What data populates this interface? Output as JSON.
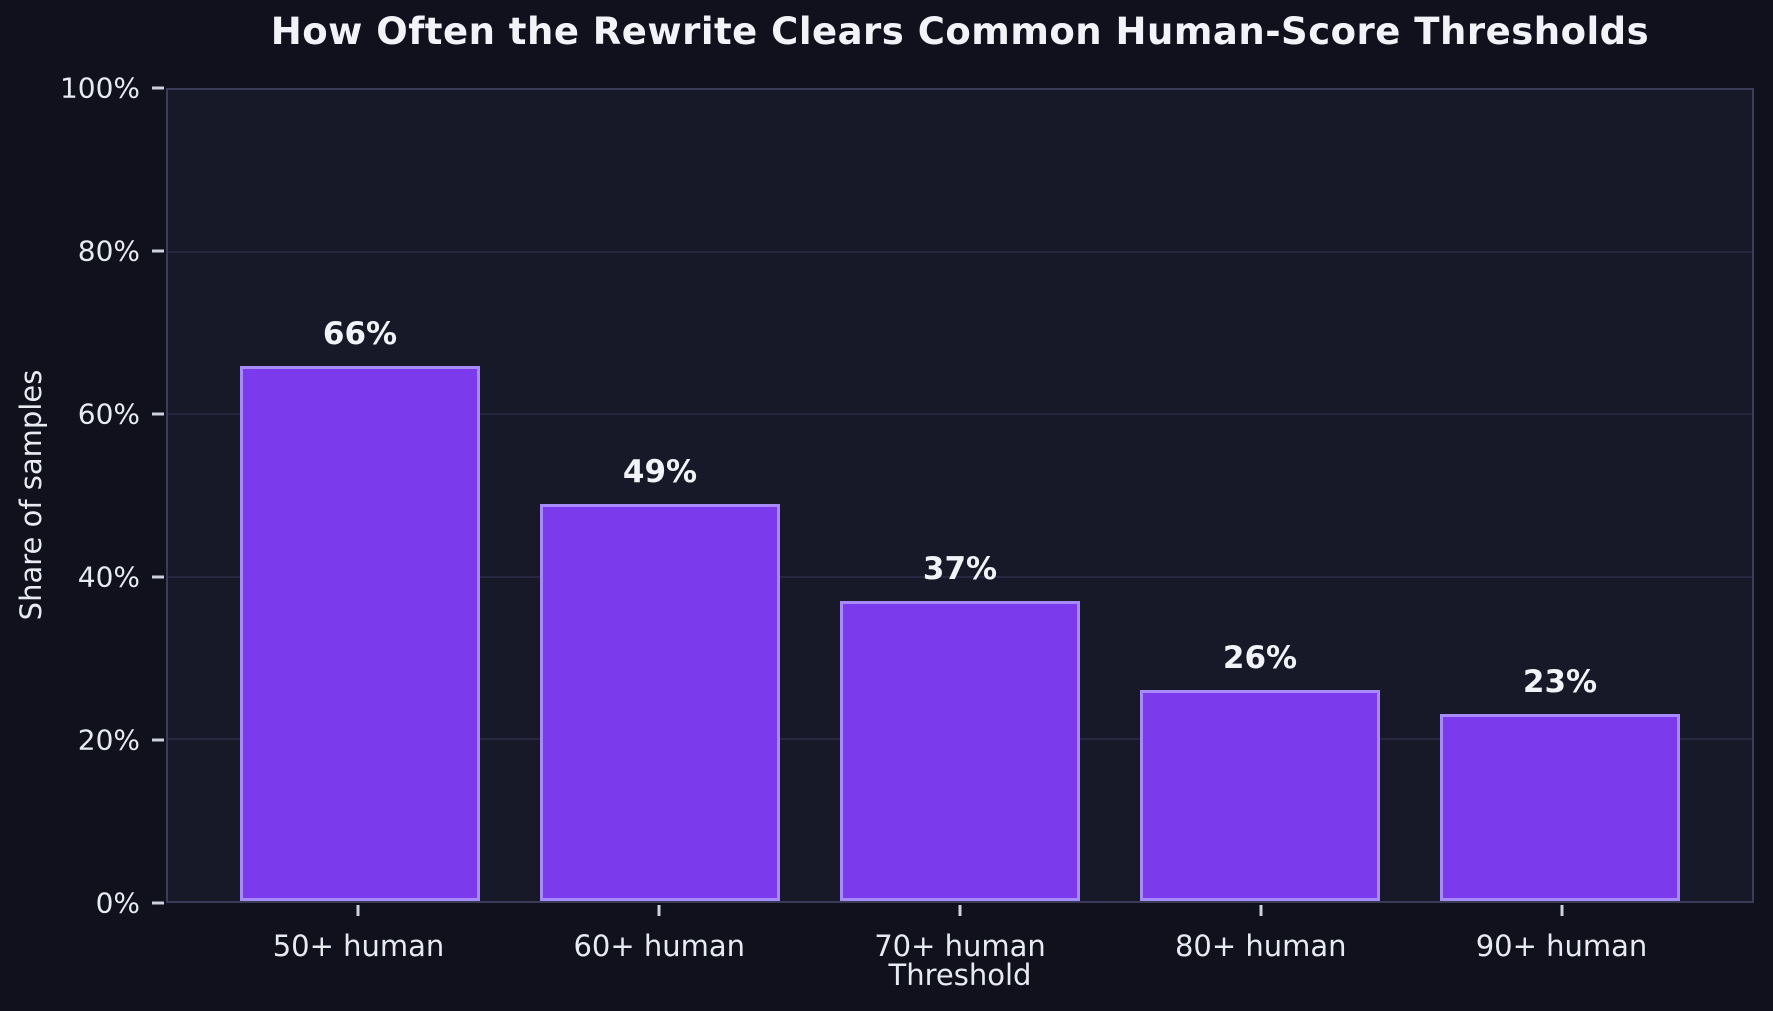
{
  "chart_data": {
    "type": "bar",
    "title": "How Often the Rewrite Clears Common Human-Score Thresholds",
    "xlabel": "Threshold",
    "ylabel": "Share of samples",
    "categories": [
      "50+ human",
      "60+ human",
      "70+ human",
      "80+ human",
      "90+ human"
    ],
    "values": [
      66,
      49,
      37,
      26,
      23
    ],
    "value_labels": [
      "66%",
      "49%",
      "37%",
      "26%",
      "23%"
    ],
    "ylim": [
      0,
      100
    ],
    "yticks": [
      0,
      20,
      40,
      60,
      80,
      100
    ],
    "ytick_labels": [
      "0%",
      "20%",
      "40%",
      "60%",
      "80%",
      "100%"
    ],
    "grid": "horizontal",
    "legend": "none",
    "colors": {
      "background": "#10111d",
      "plot_background": "#181928",
      "bar_fill": "#7c3aed",
      "bar_border": "#a78bfa",
      "gridline": "#272840",
      "spine": "#3b3c58",
      "text": "#e8eaf2",
      "title_text": "#f2f3f8"
    }
  }
}
